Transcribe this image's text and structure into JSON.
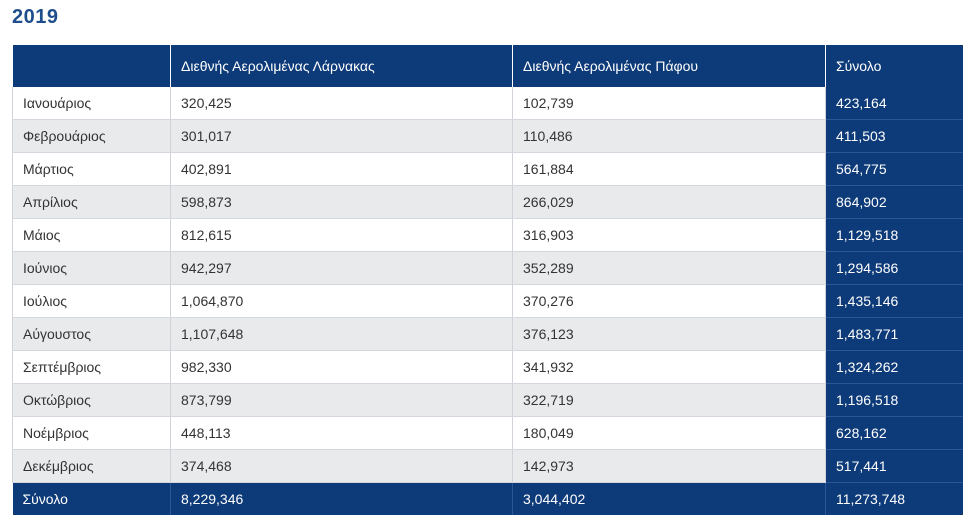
{
  "year": "2019",
  "table": {
    "headers": [
      "",
      "Διεθνής Αερολιμένας Λάρνακας",
      "Διεθνής Αερολιμένας Πάφου",
      "Σύνολο"
    ],
    "rows": [
      [
        "Ιανουάριος",
        "320,425",
        "102,739",
        "423,164"
      ],
      [
        "Φεβρουάριος",
        "301,017",
        "110,486",
        "411,503"
      ],
      [
        "Μάρτιος",
        "402,891",
        "161,884",
        "564,775"
      ],
      [
        "Απρίλιος",
        "598,873",
        "266,029",
        "864,902"
      ],
      [
        "Μάιος",
        "812,615",
        "316,903",
        "1,129,518"
      ],
      [
        "Ιούνιος",
        "942,297",
        "352,289",
        "1,294,586"
      ],
      [
        "Ιούλιος",
        "1,064,870",
        "370,276",
        "1,435,146"
      ],
      [
        "Αύγουστος",
        "1,107,648",
        "376,123",
        "1,483,771"
      ],
      [
        "Σεπτέμβριος",
        "982,330",
        "341,932",
        "1,324,262"
      ],
      [
        "Οκτώβριος",
        "873,799",
        "322,719",
        "1,196,518"
      ],
      [
        "Νοέμβριος",
        "448,113",
        "180,049",
        "628,162"
      ],
      [
        "Δεκέμβριος",
        "374,468",
        "142,973",
        "517,441"
      ]
    ],
    "footer": [
      "Σύνολο",
      "8,229,346",
      "3,044,402",
      "11,273,748"
    ]
  },
  "colors": {
    "header_bg": "#0d3a78",
    "title": "#1f4e8c",
    "row_alt": "#e9eaec"
  }
}
